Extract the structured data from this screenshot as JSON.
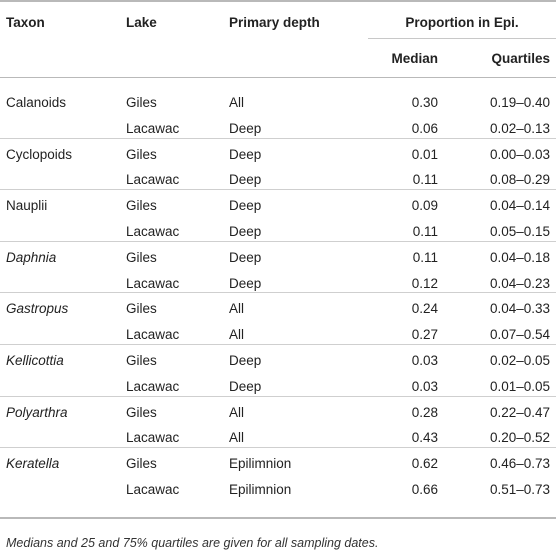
{
  "headers": {
    "taxon": "Taxon",
    "lake": "Lake",
    "depth": "Primary depth",
    "proportion": "Proportion in Epi.",
    "median": "Median",
    "quartiles": "Quartiles"
  },
  "rows": [
    {
      "taxon": "Calanoids",
      "italic": false,
      "lake": "Giles",
      "depth": "All",
      "median": "0.30",
      "quartiles": "0.19–0.40"
    },
    {
      "taxon": "",
      "italic": false,
      "lake": "Lacawac",
      "depth": "Deep",
      "median": "0.06",
      "quartiles": "0.02–0.13"
    },
    {
      "taxon": "Cyclopoids",
      "italic": false,
      "lake": "Giles",
      "depth": "Deep",
      "median": "0.01",
      "quartiles": "0.00–0.03"
    },
    {
      "taxon": "",
      "italic": false,
      "lake": "Lacawac",
      "depth": "Deep",
      "median": "0.11",
      "quartiles": "0.08–0.29"
    },
    {
      "taxon": "Nauplii",
      "italic": false,
      "lake": "Giles",
      "depth": "Deep",
      "median": "0.09",
      "quartiles": "0.04–0.14"
    },
    {
      "taxon": "",
      "italic": false,
      "lake": "Lacawac",
      "depth": "Deep",
      "median": "0.11",
      "quartiles": "0.05–0.15"
    },
    {
      "taxon": "Daphnia",
      "italic": true,
      "lake": "Giles",
      "depth": "Deep",
      "median": "0.11",
      "quartiles": "0.04–0.18"
    },
    {
      "taxon": "",
      "italic": false,
      "lake": "Lacawac",
      "depth": "Deep",
      "median": "0.12",
      "quartiles": "0.04–0.23"
    },
    {
      "taxon": "Gastropus",
      "italic": true,
      "lake": "Giles",
      "depth": "All",
      "median": "0.24",
      "quartiles": "0.04–0.33"
    },
    {
      "taxon": "",
      "italic": false,
      "lake": "Lacawac",
      "depth": "All",
      "median": "0.27",
      "quartiles": "0.07–0.54"
    },
    {
      "taxon": "Kellicottia",
      "italic": true,
      "lake": "Giles",
      "depth": "Deep",
      "median": "0.03",
      "quartiles": "0.02–0.05"
    },
    {
      "taxon": "",
      "italic": false,
      "lake": "Lacawac",
      "depth": "Deep",
      "median": "0.03",
      "quartiles": "0.01–0.05"
    },
    {
      "taxon": "Polyarthra",
      "italic": true,
      "lake": "Giles",
      "depth": "All",
      "median": "0.28",
      "quartiles": "0.22–0.47"
    },
    {
      "taxon": "",
      "italic": false,
      "lake": "Lacawac",
      "depth": "All",
      "median": "0.43",
      "quartiles": "0.20–0.52"
    },
    {
      "taxon": "Keratella",
      "italic": true,
      "lake": "Giles",
      "depth": "Epilimnion",
      "median": "0.62",
      "quartiles": "0.46–0.73"
    },
    {
      "taxon": "",
      "italic": false,
      "lake": "Lacawac",
      "depth": "Epilimnion",
      "median": "0.66",
      "quartiles": "0.51–0.73"
    }
  ],
  "footnote": "Medians and 25 and 75% quartiles are given for all sampling dates."
}
